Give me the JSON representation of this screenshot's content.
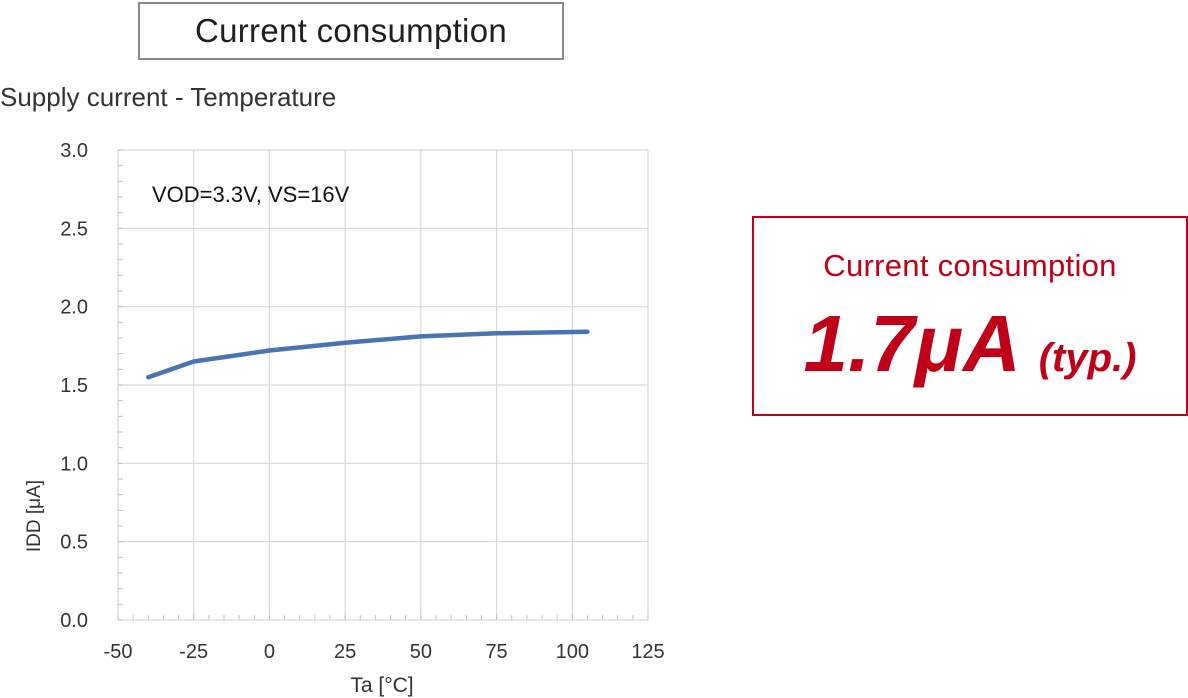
{
  "header": {
    "title": "Current consumption"
  },
  "callout": {
    "label": "Current consumption",
    "value": "1.7μA",
    "qualifier": "(typ.)"
  },
  "colors": {
    "accent": "#c00018",
    "series": "#4a73b4",
    "grid": "#d9d9d9"
  },
  "chart_data": {
    "type": "line",
    "title": "Supply current - Temperature",
    "annotation": "VOD=3.3V, VS=16V",
    "xlabel": "Ta [°C]",
    "ylabel": "IDD [μA]",
    "xlim": [
      -50,
      125
    ],
    "ylim": [
      0,
      3.0
    ],
    "xticks": [
      -50,
      -25,
      0,
      25,
      50,
      75,
      100,
      125
    ],
    "yticks": [
      "0.0",
      "0.5",
      "1.0",
      "1.5",
      "2.0",
      "2.5",
      "3.0"
    ],
    "grid": true,
    "series": [
      {
        "x": [
          -40,
          -25,
          0,
          25,
          50,
          75,
          105
        ],
        "values": [
          1.55,
          1.65,
          1.72,
          1.77,
          1.81,
          1.83,
          1.84
        ]
      }
    ]
  }
}
